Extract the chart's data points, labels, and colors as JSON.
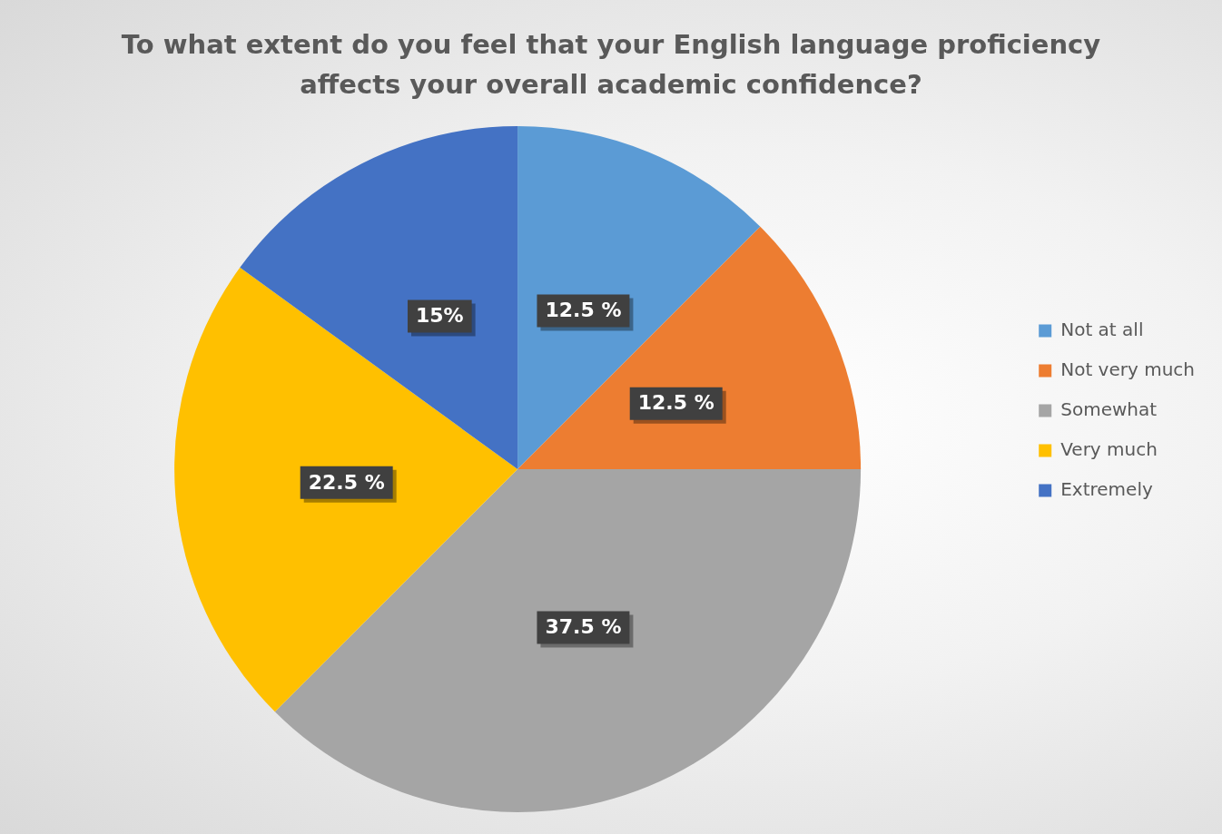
{
  "chart_data": {
    "type": "pie",
    "title": "To what extent do you feel that your English language proficiency affects your overall academic confidence?",
    "categories": [
      "Not at all",
      "Not very much",
      "Somewhat",
      "Very much",
      "Extremely"
    ],
    "values": [
      12.5,
      12.5,
      37.5,
      22.5,
      15
    ],
    "colors": [
      "#5b9bd5",
      "#ed7d31",
      "#a5a5a5",
      "#ffc000",
      "#4472c4"
    ],
    "value_labels": [
      "12.5 %",
      "12.5 %",
      "37.5 %",
      "22.5 %",
      "15%"
    ],
    "legend": "right"
  }
}
